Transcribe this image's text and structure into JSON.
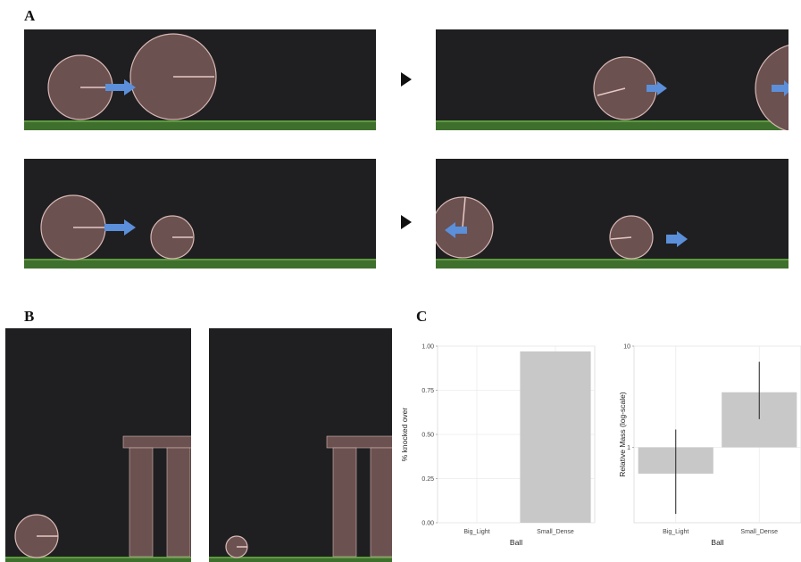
{
  "figure": {
    "panel_labels": {
      "a": "A",
      "b": "B",
      "c": "C"
    }
  },
  "colors": {
    "scene_bg": "#1f1f21",
    "ground": "#3f6f2d",
    "ground_top": "#5c9a3f",
    "ball_fill": "#6b5150",
    "ball_stroke": "#d8b8b4",
    "indicator": "#e6c9c5",
    "arrow": "#5b8fd9",
    "bar_fill": "#c8c8c8",
    "plot_bg": "#ffffff",
    "grid": "#ececec"
  },
  "icons": {
    "panel_transition": "play-triangle-icon",
    "velocity": "arrow-icon"
  },
  "chart_data": [
    {
      "type": "bar",
      "categories": [
        "Big_Light",
        "Small_Dense"
      ],
      "values": [
        0.0,
        0.97
      ],
      "xlabel": "Ball",
      "ylabel": "% knocked over",
      "ylim": [
        0,
        1
      ],
      "yticks": [
        "0.00",
        "0.25",
        "0.50",
        "0.75",
        "1.00"
      ],
      "grid": true
    },
    {
      "type": "bar",
      "scale": "log",
      "categories": [
        "Big_Light",
        "Small_Dense"
      ],
      "values": [
        0.55,
        3.5
      ],
      "error_low": [
        0.22,
        1.9
      ],
      "error_high": [
        1.5,
        7.0
      ],
      "xlabel": "Ball",
      "ylabel": "Relative Mass (log-scale)",
      "ylim": [
        0.18,
        10
      ],
      "baseline": 1,
      "yticks": [
        "1",
        "10"
      ],
      "grid": true
    }
  ]
}
